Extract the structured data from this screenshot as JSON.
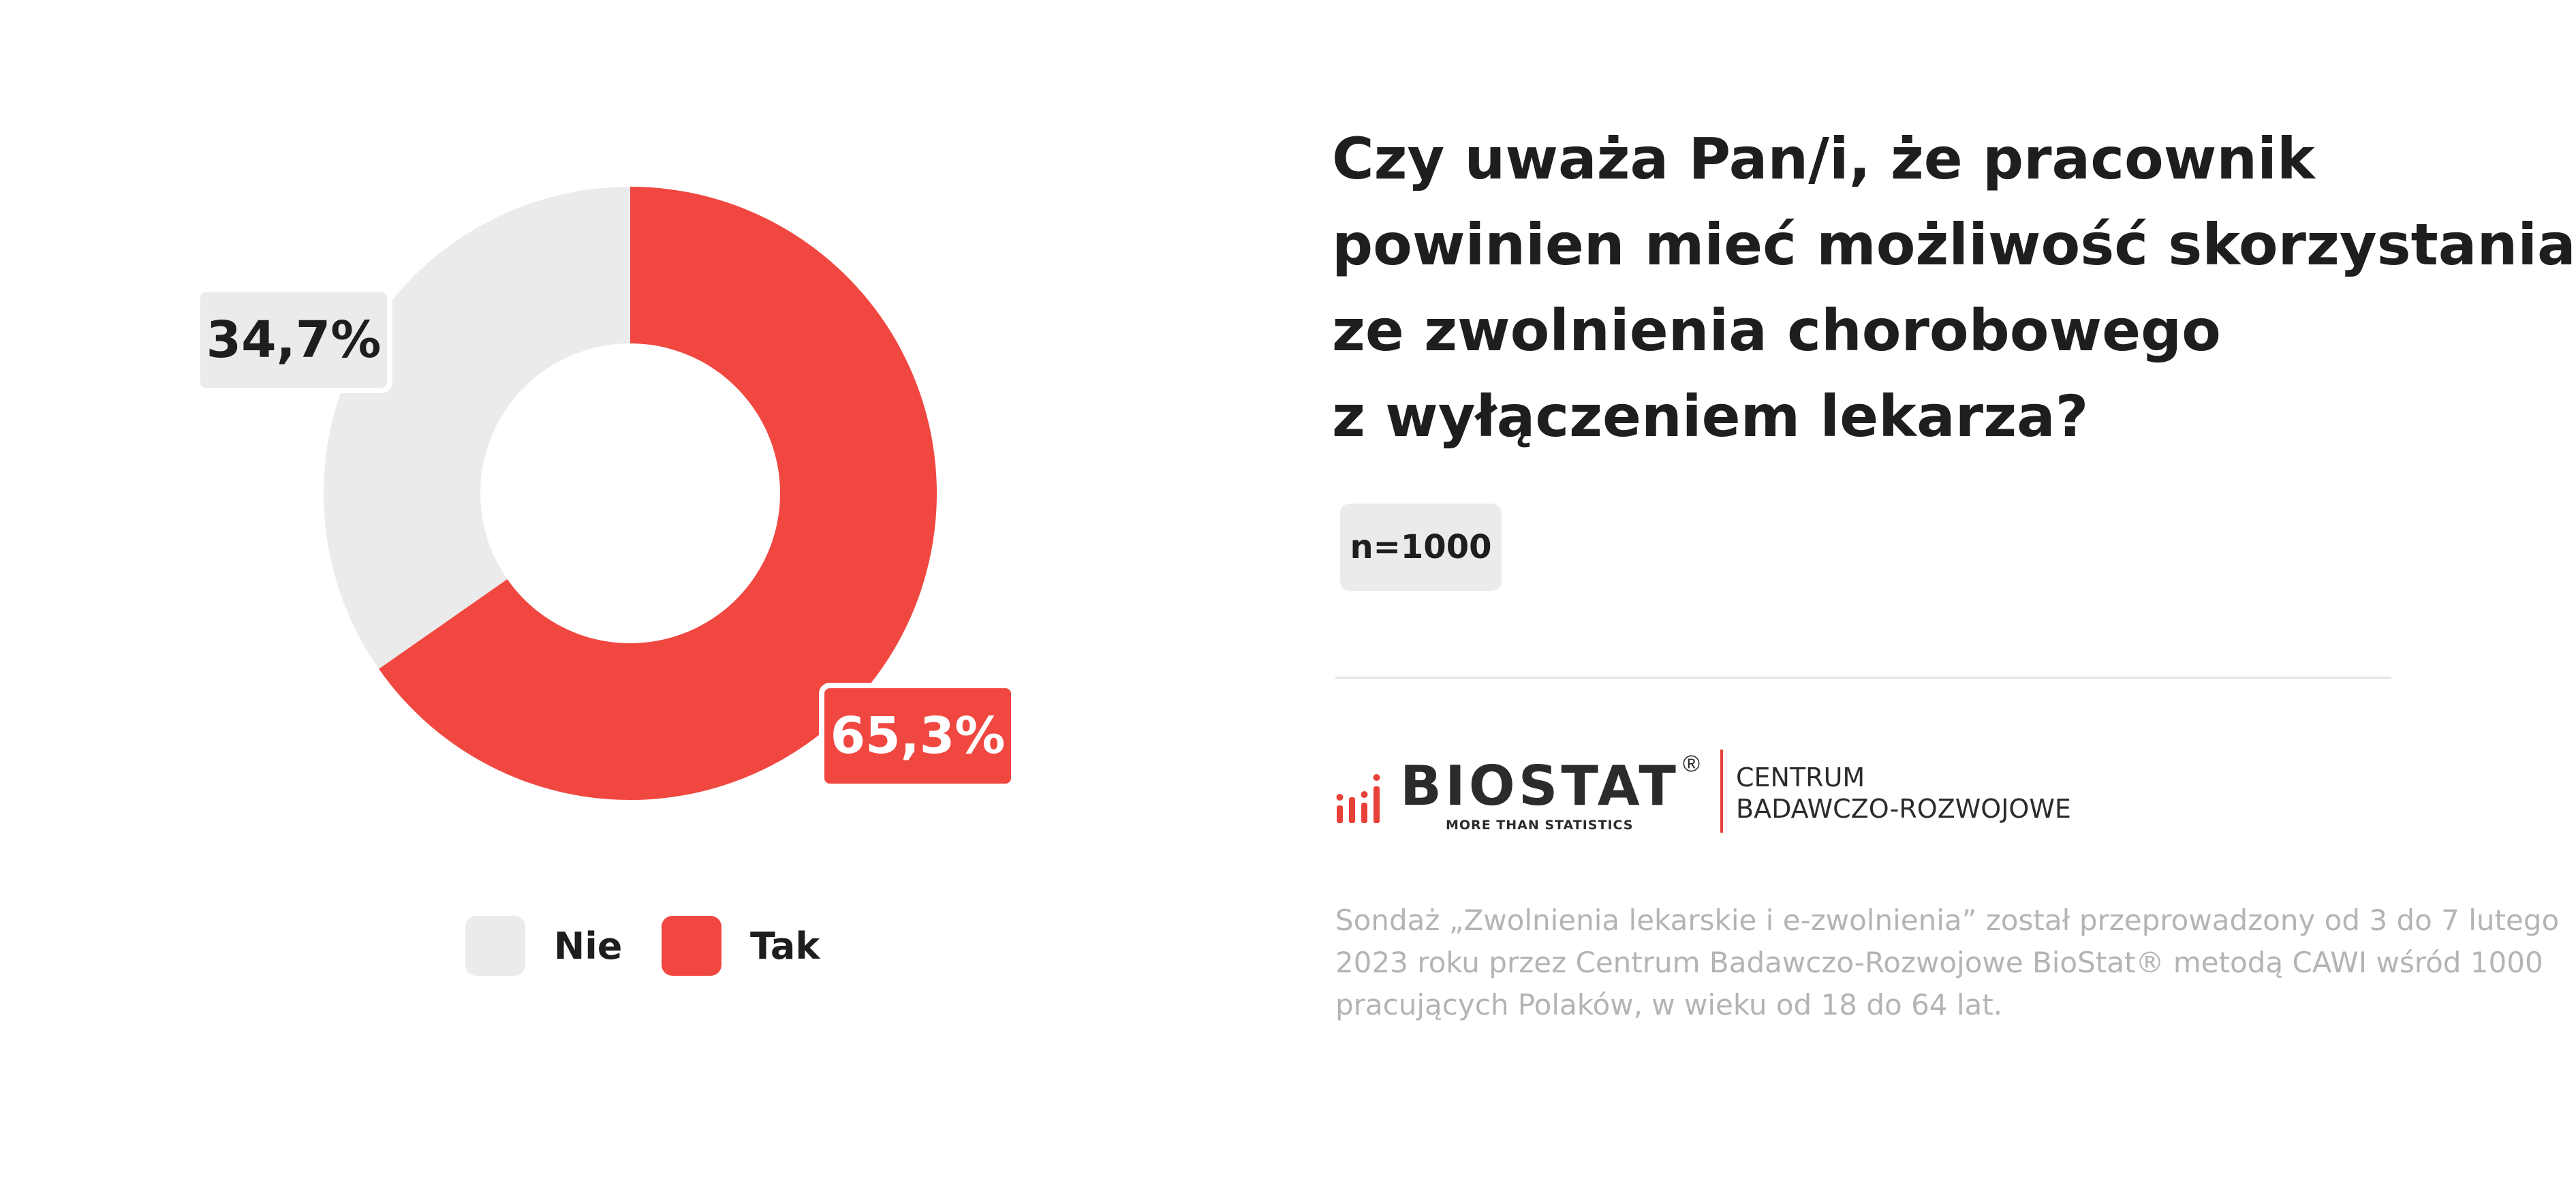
{
  "chart_data": {
    "type": "pie",
    "categories": [
      "Nie",
      "Tak"
    ],
    "values": [
      34.7,
      65.3
    ],
    "value_labels": [
      "34,7%",
      "65,3%"
    ],
    "colors": [
      "#ebebeb",
      "#f04841"
    ],
    "legend": {
      "placement": "bottom",
      "entries": [
        "Nie",
        "Tak"
      ]
    }
  },
  "question": {
    "lines": [
      "Czy uważa Pan/i, że pracownik",
      "powinien mieć możliwość skorzystania",
      "ze zwolnienia chorobowego",
      "z wyłączeniem lekarza?"
    ]
  },
  "sample": "n=1000",
  "logo": {
    "name": "BIOSTAT",
    "registered": "®",
    "tagline": "MORE THAN STATISTICS",
    "unit_line1": "CENTRUM",
    "unit_line2": "BADAWCZO-ROZWOJOWE",
    "accent_color": "#e8413a"
  },
  "footnote": {
    "lines": [
      "Sondaż „Zwolnienia lekarskie i e-zwolnienia” został przeprowadzony od 3 do 7 lutego",
      "2023 roku przez Centrum Badawczo-Rozwojowe BioStat® metodą CAWI wśród 1000",
      "pracujących Polaków, w wieku od 18 do 64 lat."
    ]
  }
}
